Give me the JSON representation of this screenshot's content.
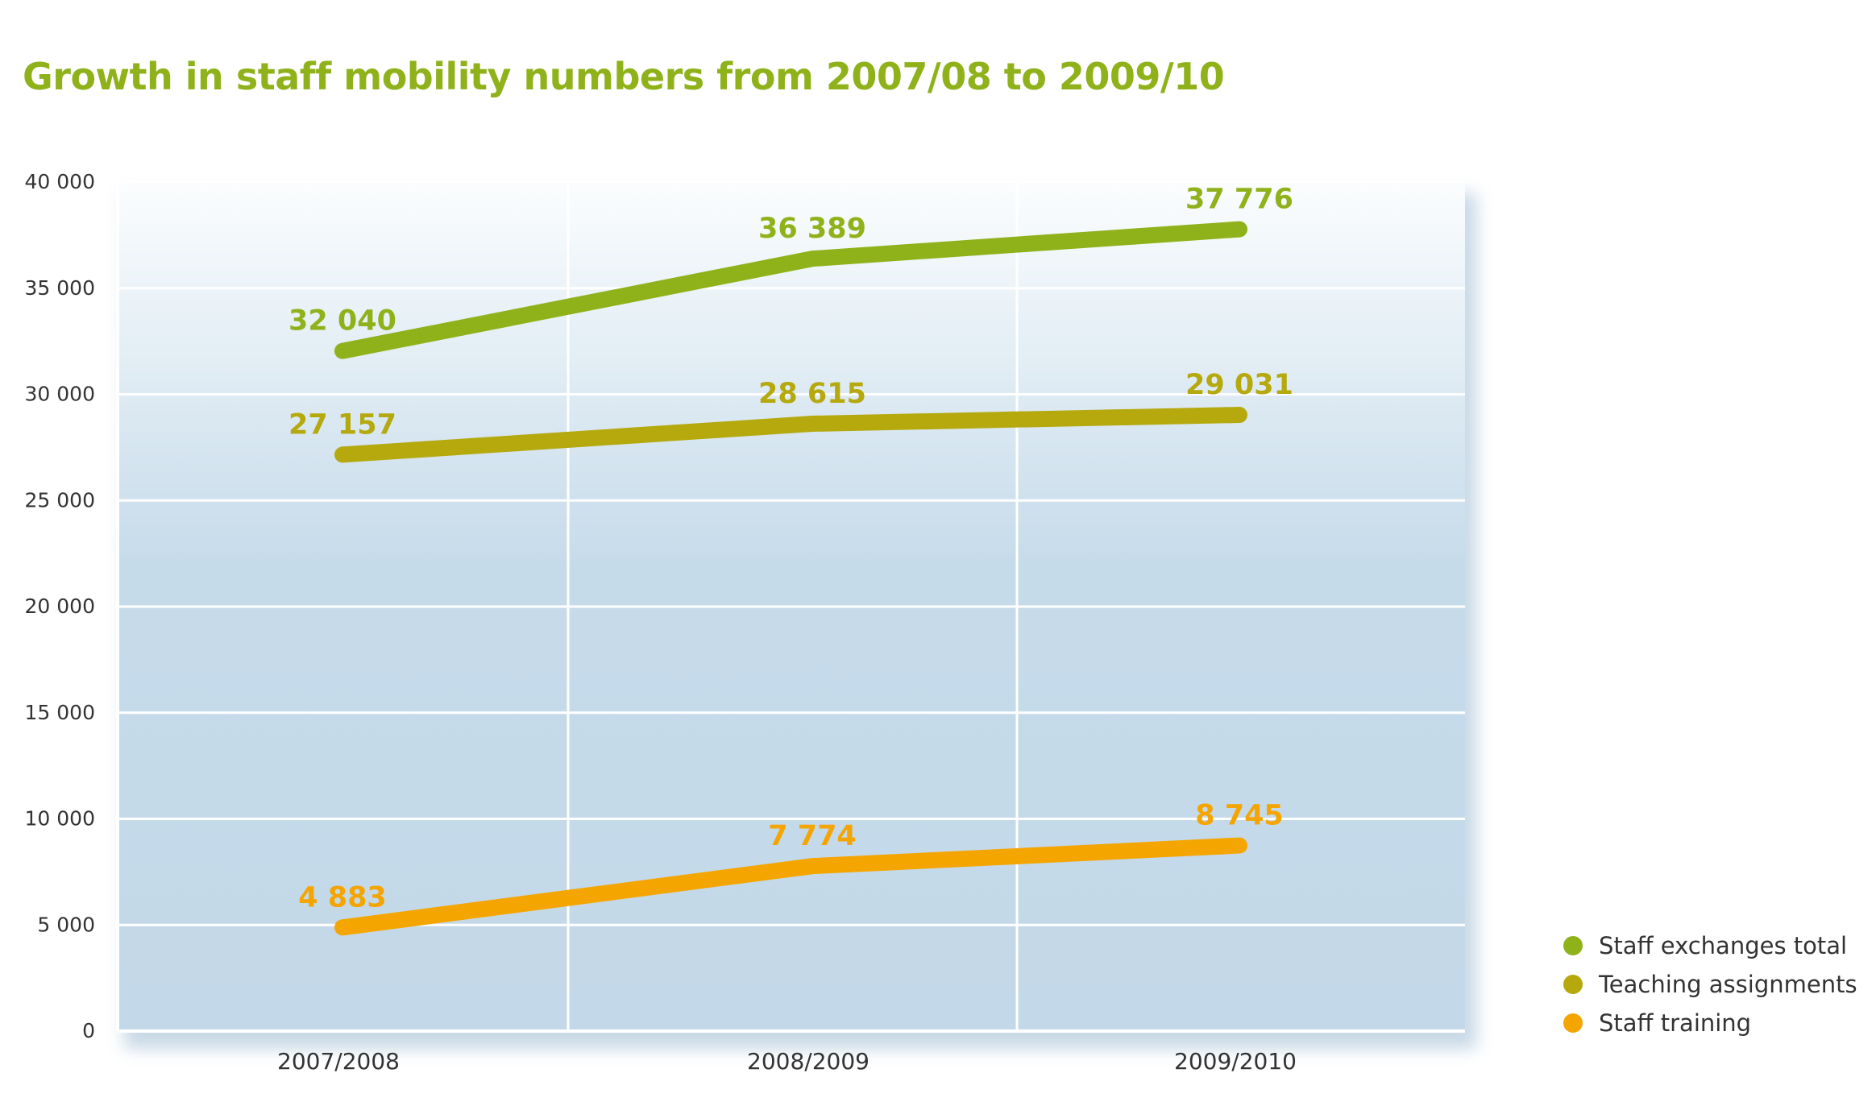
{
  "chart_data": {
    "type": "line",
    "title": "Growth in staff mobility numbers from 2007/08 to 2009/10",
    "categories": [
      "2007/2008",
      "2008/2009",
      "2009/2010"
    ],
    "ylim": [
      0,
      40000
    ],
    "y_ticks": [
      0,
      5000,
      10000,
      15000,
      20000,
      25000,
      30000,
      35000,
      40000
    ],
    "y_tick_labels": [
      "0",
      "5 000",
      "10 000",
      "15 000",
      "20 000",
      "25 000",
      "30 000",
      "35 000",
      "40 000"
    ],
    "grid": true,
    "legend_position": "bottom-right",
    "series": [
      {
        "name": "Staff exchanges total",
        "values": [
          32040,
          36389,
          37776
        ],
        "labels": [
          "32 040",
          "36 389",
          "37 776"
        ],
        "color": "#8fb21b"
      },
      {
        "name": "Teaching assignments",
        "values": [
          27157,
          28615,
          29031
        ],
        "labels": [
          "27 157",
          "28 615",
          "29 031"
        ],
        "color": "#b5a90e"
      },
      {
        "name": "Staff training",
        "values": [
          4883,
          7774,
          8745
        ],
        "labels": [
          "4 883",
          "7 774",
          "8 745"
        ],
        "color": "#f5a500"
      }
    ]
  }
}
